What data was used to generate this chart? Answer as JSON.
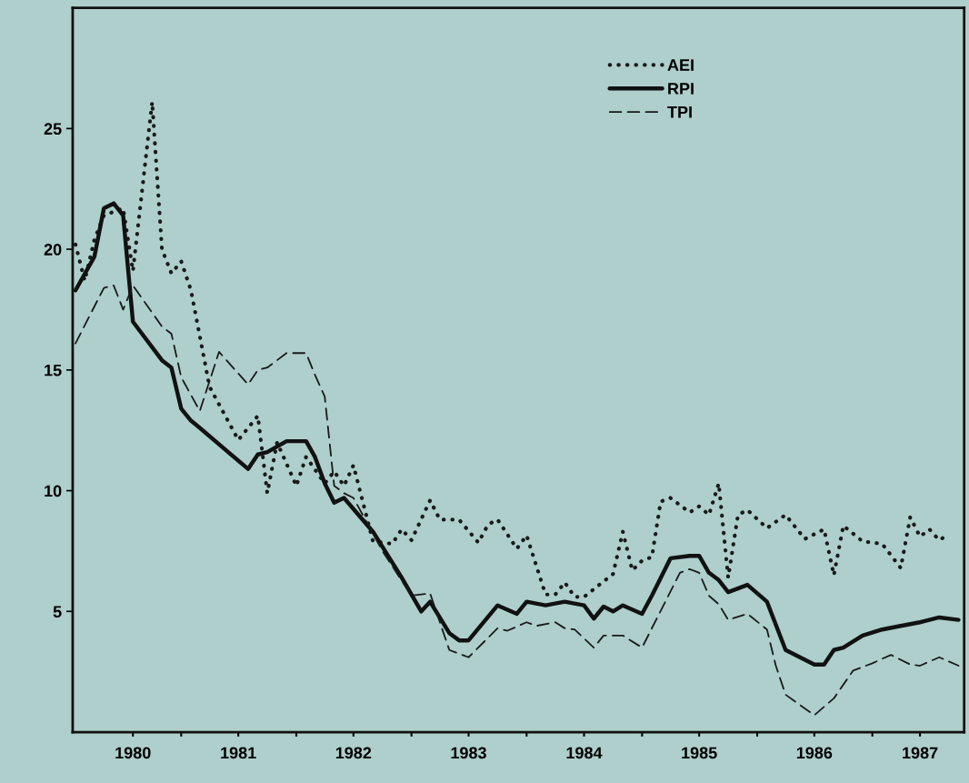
{
  "chart_data": {
    "type": "line",
    "xlim": [
      "1980-01-23",
      "1987-10-19"
    ],
    "xticks": [
      {
        "value": "1981-01-01",
        "label": null
      },
      {
        "value": "1982-01-01",
        "label": null
      },
      {
        "value": "1983-01-01",
        "label": null
      },
      {
        "value": "1984-01-01",
        "label": null
      },
      {
        "value": "1985-01-01",
        "label": null
      },
      {
        "value": "1986-01-01",
        "label": null
      },
      {
        "value": "1987-01-01",
        "label": null
      },
      {
        "value": "1980-08-01",
        "label": "1980"
      },
      {
        "value": "1981-07-01",
        "label": "1981"
      },
      {
        "value": "1982-07-01",
        "label": "1982"
      },
      {
        "value": "1983-07-01",
        "label": "1983"
      },
      {
        "value": "1984-07-01",
        "label": "1984"
      },
      {
        "value": "1985-07-01",
        "label": "1985"
      },
      {
        "value": "1986-07-01",
        "label": "1986"
      },
      {
        "value": "1987-06-01",
        "label": "1987"
      }
    ],
    "ylim": [
      0,
      30
    ],
    "yticks": [
      5,
      10,
      15,
      20,
      25
    ],
    "grid": false,
    "legend": "top",
    "marker": "none",
    "series": [
      {
        "name": "AEI",
        "color": "#1a1a1a",
        "line_style": "dotted",
        "x": [
          "1980-02",
          "1980-03",
          "1980-04",
          "1980-05",
          "1980-07",
          "1980-08",
          "1980-10",
          "1980-11",
          "1980-12",
          "1981-01",
          "1981-02",
          "1981-04",
          "1981-07",
          "1981-09",
          "1981-10",
          "1981-11",
          "1982-01",
          "1982-02",
          "1982-04",
          "1982-05",
          "1982-06",
          "1982-07",
          "1982-09",
          "1982-11",
          "1982-12",
          "1983-01",
          "1983-03",
          "1983-04",
          "1983-06",
          "1983-08",
          "1983-09",
          "1983-10",
          "1983-12",
          "1984-01",
          "1984-03",
          "1984-04",
          "1984-05",
          "1984-06",
          "1984-07",
          "1984-10",
          "1984-11",
          "1984-12",
          "1985-01",
          "1985-02",
          "1985-03",
          "1985-04",
          "1985-06",
          "1985-07",
          "1985-08",
          "1985-09",
          "1985-10",
          "1985-11",
          "1985-12",
          "1986-02",
          "1986-04",
          "1986-06",
          "1986-08",
          "1986-09",
          "1986-10",
          "1986-12",
          "1987-02",
          "1987-04",
          "1987-05",
          "1987-06",
          "1987-07",
          "1987-08",
          "1987-09"
        ],
        "values": [
          20.2,
          18.7,
          20.4,
          21.4,
          21.7,
          19.1,
          26.1,
          20.0,
          19.0,
          19.5,
          18.3,
          14.3,
          12.1,
          13.1,
          9.9,
          12.0,
          10.2,
          11.4,
          10.3,
          10.8,
          10.2,
          11.05,
          7.9,
          7.8,
          8.4,
          7.95,
          9.6,
          8.8,
          8.8,
          7.85,
          8.6,
          8.8,
          7.6,
          8.15,
          5.7,
          5.7,
          6.2,
          5.6,
          5.6,
          6.55,
          8.3,
          6.7,
          7.1,
          7.25,
          9.55,
          9.7,
          9.1,
          9.35,
          9.0,
          10.3,
          6.4,
          9.0,
          9.2,
          8.45,
          9.0,
          8.0,
          8.4,
          6.5,
          8.55,
          7.9,
          7.8,
          6.8,
          8.9,
          8.1,
          8.4,
          7.95,
          8.2
        ]
      },
      {
        "name": "RPI",
        "color": "#111111",
        "line_style": "solid",
        "x": [
          "1980-02",
          "1980-04",
          "1980-05",
          "1980-06",
          "1980-07",
          "1980-08",
          "1980-11",
          "1980-12",
          "1981-01",
          "1981-02",
          "1981-03",
          "1981-08",
          "1981-09",
          "1981-10",
          "1981-12",
          "1982-02",
          "1982-03",
          "1982-04",
          "1982-05",
          "1982-06",
          "1982-09",
          "1982-12",
          "1983-02",
          "1983-03",
          "1983-05",
          "1983-06",
          "1983-07",
          "1983-10",
          "1983-12",
          "1984-01",
          "1984-03",
          "1984-05",
          "1984-07",
          "1984-08",
          "1984-09",
          "1984-10",
          "1984-11",
          "1985-01",
          "1985-02",
          "1985-04",
          "1985-06",
          "1985-07",
          "1985-08",
          "1985-09",
          "1985-10",
          "1985-12",
          "1986-02",
          "1986-04",
          "1986-07",
          "1986-08",
          "1986-09",
          "1986-10",
          "1986-12",
          "1987-02",
          "1987-04",
          "1987-06",
          "1987-08",
          "1987-10"
        ],
        "values": [
          18.3,
          19.7,
          21.7,
          21.9,
          21.4,
          17.0,
          15.4,
          15.1,
          13.4,
          12.9,
          12.6,
          10.9,
          11.5,
          11.6,
          12.05,
          12.05,
          11.4,
          10.3,
          9.5,
          9.7,
          8.3,
          6.4,
          5.0,
          5.4,
          4.1,
          3.8,
          3.8,
          5.25,
          4.9,
          5.4,
          5.25,
          5.4,
          5.25,
          4.7,
          5.2,
          5.0,
          5.25,
          4.9,
          5.65,
          7.2,
          7.3,
          7.3,
          6.6,
          6.3,
          5.8,
          6.1,
          5.4,
          3.4,
          2.8,
          2.8,
          3.4,
          3.5,
          4.0,
          4.25,
          4.4,
          4.55,
          4.75,
          4.65
        ]
      },
      {
        "name": "TPI",
        "color": "#1a1a1a",
        "line_style": "dashed",
        "x": [
          "1980-02",
          "1980-05",
          "1980-06",
          "1980-07",
          "1980-08",
          "1980-11",
          "1980-12",
          "1981-01",
          "1981-03",
          "1981-05",
          "1981-08",
          "1981-09",
          "1981-10",
          "1981-12",
          "1982-02",
          "1982-03",
          "1982-04",
          "1982-05",
          "1982-06",
          "1982-07",
          "1982-10",
          "1983-01",
          "1983-03",
          "1983-05",
          "1983-07",
          "1983-10",
          "1983-11",
          "1984-01",
          "1984-02",
          "1984-04",
          "1984-05",
          "1984-06",
          "1984-08",
          "1984-09",
          "1984-11",
          "1985-01",
          "1985-05",
          "1985-06",
          "1985-07",
          "1985-08",
          "1985-09",
          "1985-10",
          "1985-12",
          "1986-02",
          "1986-03",
          "1986-04",
          "1986-07",
          "1986-09",
          "1986-11",
          "1987-01",
          "1987-03",
          "1987-05",
          "1987-06",
          "1987-08",
          "1987-10"
        ],
        "values": [
          16.1,
          18.4,
          18.5,
          17.5,
          18.5,
          16.8,
          16.5,
          14.7,
          13.3,
          15.75,
          14.4,
          15.0,
          15.1,
          15.7,
          15.7,
          14.8,
          13.9,
          10.2,
          9.9,
          9.7,
          7.5,
          5.65,
          5.75,
          3.4,
          3.1,
          4.3,
          4.2,
          4.55,
          4.4,
          4.55,
          4.3,
          4.25,
          3.5,
          4.0,
          4.0,
          3.5,
          6.6,
          6.75,
          6.6,
          5.65,
          5.3,
          4.65,
          4.9,
          4.25,
          2.75,
          1.55,
          0.7,
          1.4,
          2.55,
          2.85,
          3.2,
          2.8,
          2.75,
          3.1,
          2.75
        ]
      }
    ]
  }
}
